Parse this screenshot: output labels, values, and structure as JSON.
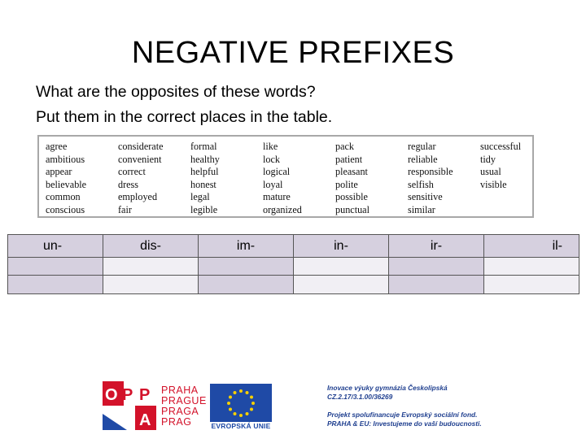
{
  "title": "NEGATIVE PREFIXES",
  "instructions": [
    "What are the opposites of these words?",
    "Put them in the correct places in the table."
  ],
  "word_columns": [
    [
      "agree",
      "ambitious",
      "appear",
      "believable",
      "common",
      "conscious"
    ],
    [
      "considerate",
      "convenient",
      "correct",
      "dress",
      "employed",
      "fair"
    ],
    [
      "formal",
      "healthy",
      "helpful",
      "honest",
      "legal",
      "legible"
    ],
    [
      "like",
      "lock",
      "logical",
      "loyal",
      "mature",
      "organized"
    ],
    [
      "pack",
      "patient",
      "pleasant",
      "polite",
      "possible",
      "punctual"
    ],
    [
      "regular",
      "reliable",
      "responsible",
      "selfish",
      "sensitive",
      "similar"
    ],
    [
      "successful",
      "tidy",
      "usual",
      "visible"
    ]
  ],
  "table_headers": [
    "un-",
    "dis-",
    "im-",
    "in-",
    "ir-",
    "il-"
  ],
  "colors": {
    "header_bg": "#d6d0df",
    "row_alt_bg": "#f1eff4",
    "praha_red": "#d3122a",
    "eu_blue": "#1f4aa6"
  },
  "footer": {
    "opp_letters": [
      "O",
      "P",
      "P",
      "A"
    ],
    "praha_lines": [
      "PRAHA",
      "PRAGUE",
      "PRAGA",
      "PRAG"
    ],
    "eu_caption": "EVROPSKÁ UNIE",
    "project_lines": [
      "Inovace výuky gymnázia Českolipská",
      "CZ.2.17/3.1.00/36269",
      "Projekt spolufinancuje Evropský sociální fond.",
      "PRAHA & EU: Investujeme do vaší budoucnosti."
    ]
  }
}
